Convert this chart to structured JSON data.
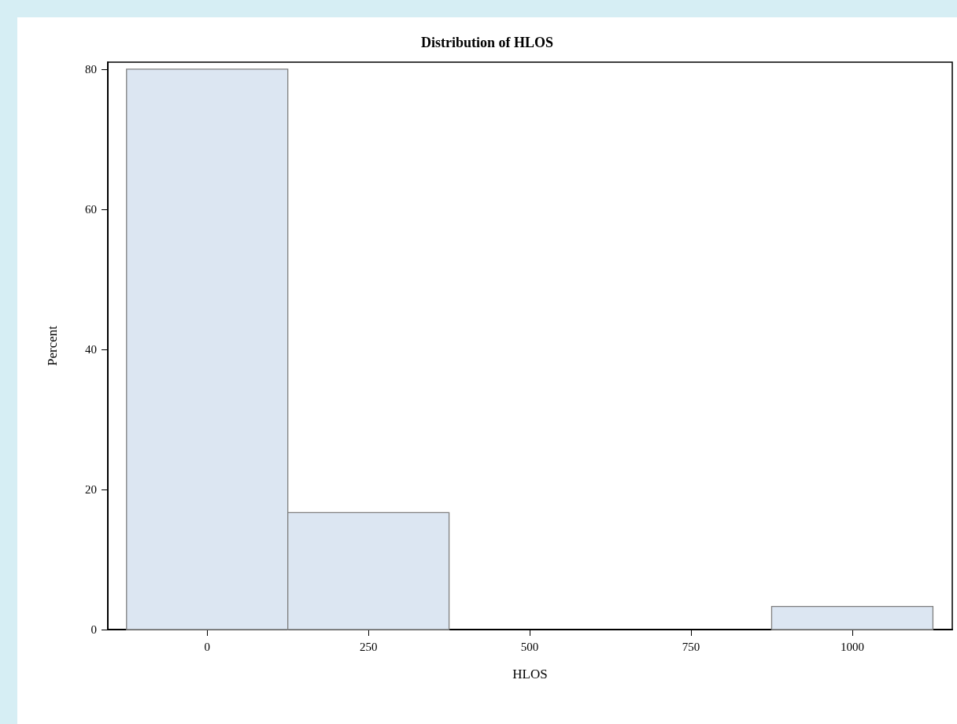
{
  "chart_data": {
    "type": "histogram",
    "title": "Distribution of HLOS",
    "xlabel": "HLOS",
    "ylabel": "Percent",
    "bins": [
      -125,
      125,
      375,
      625,
      875,
      1125
    ],
    "values": [
      80,
      16.7,
      0,
      0,
      3.3
    ],
    "color": "#dce6f2",
    "xlim": [
      -154,
      1155
    ],
    "xticks": [
      0,
      250,
      500,
      750,
      1000
    ],
    "ylim": [
      0,
      81
    ],
    "yticks": [
      0,
      20,
      40,
      60,
      80
    ],
    "grid": false
  }
}
